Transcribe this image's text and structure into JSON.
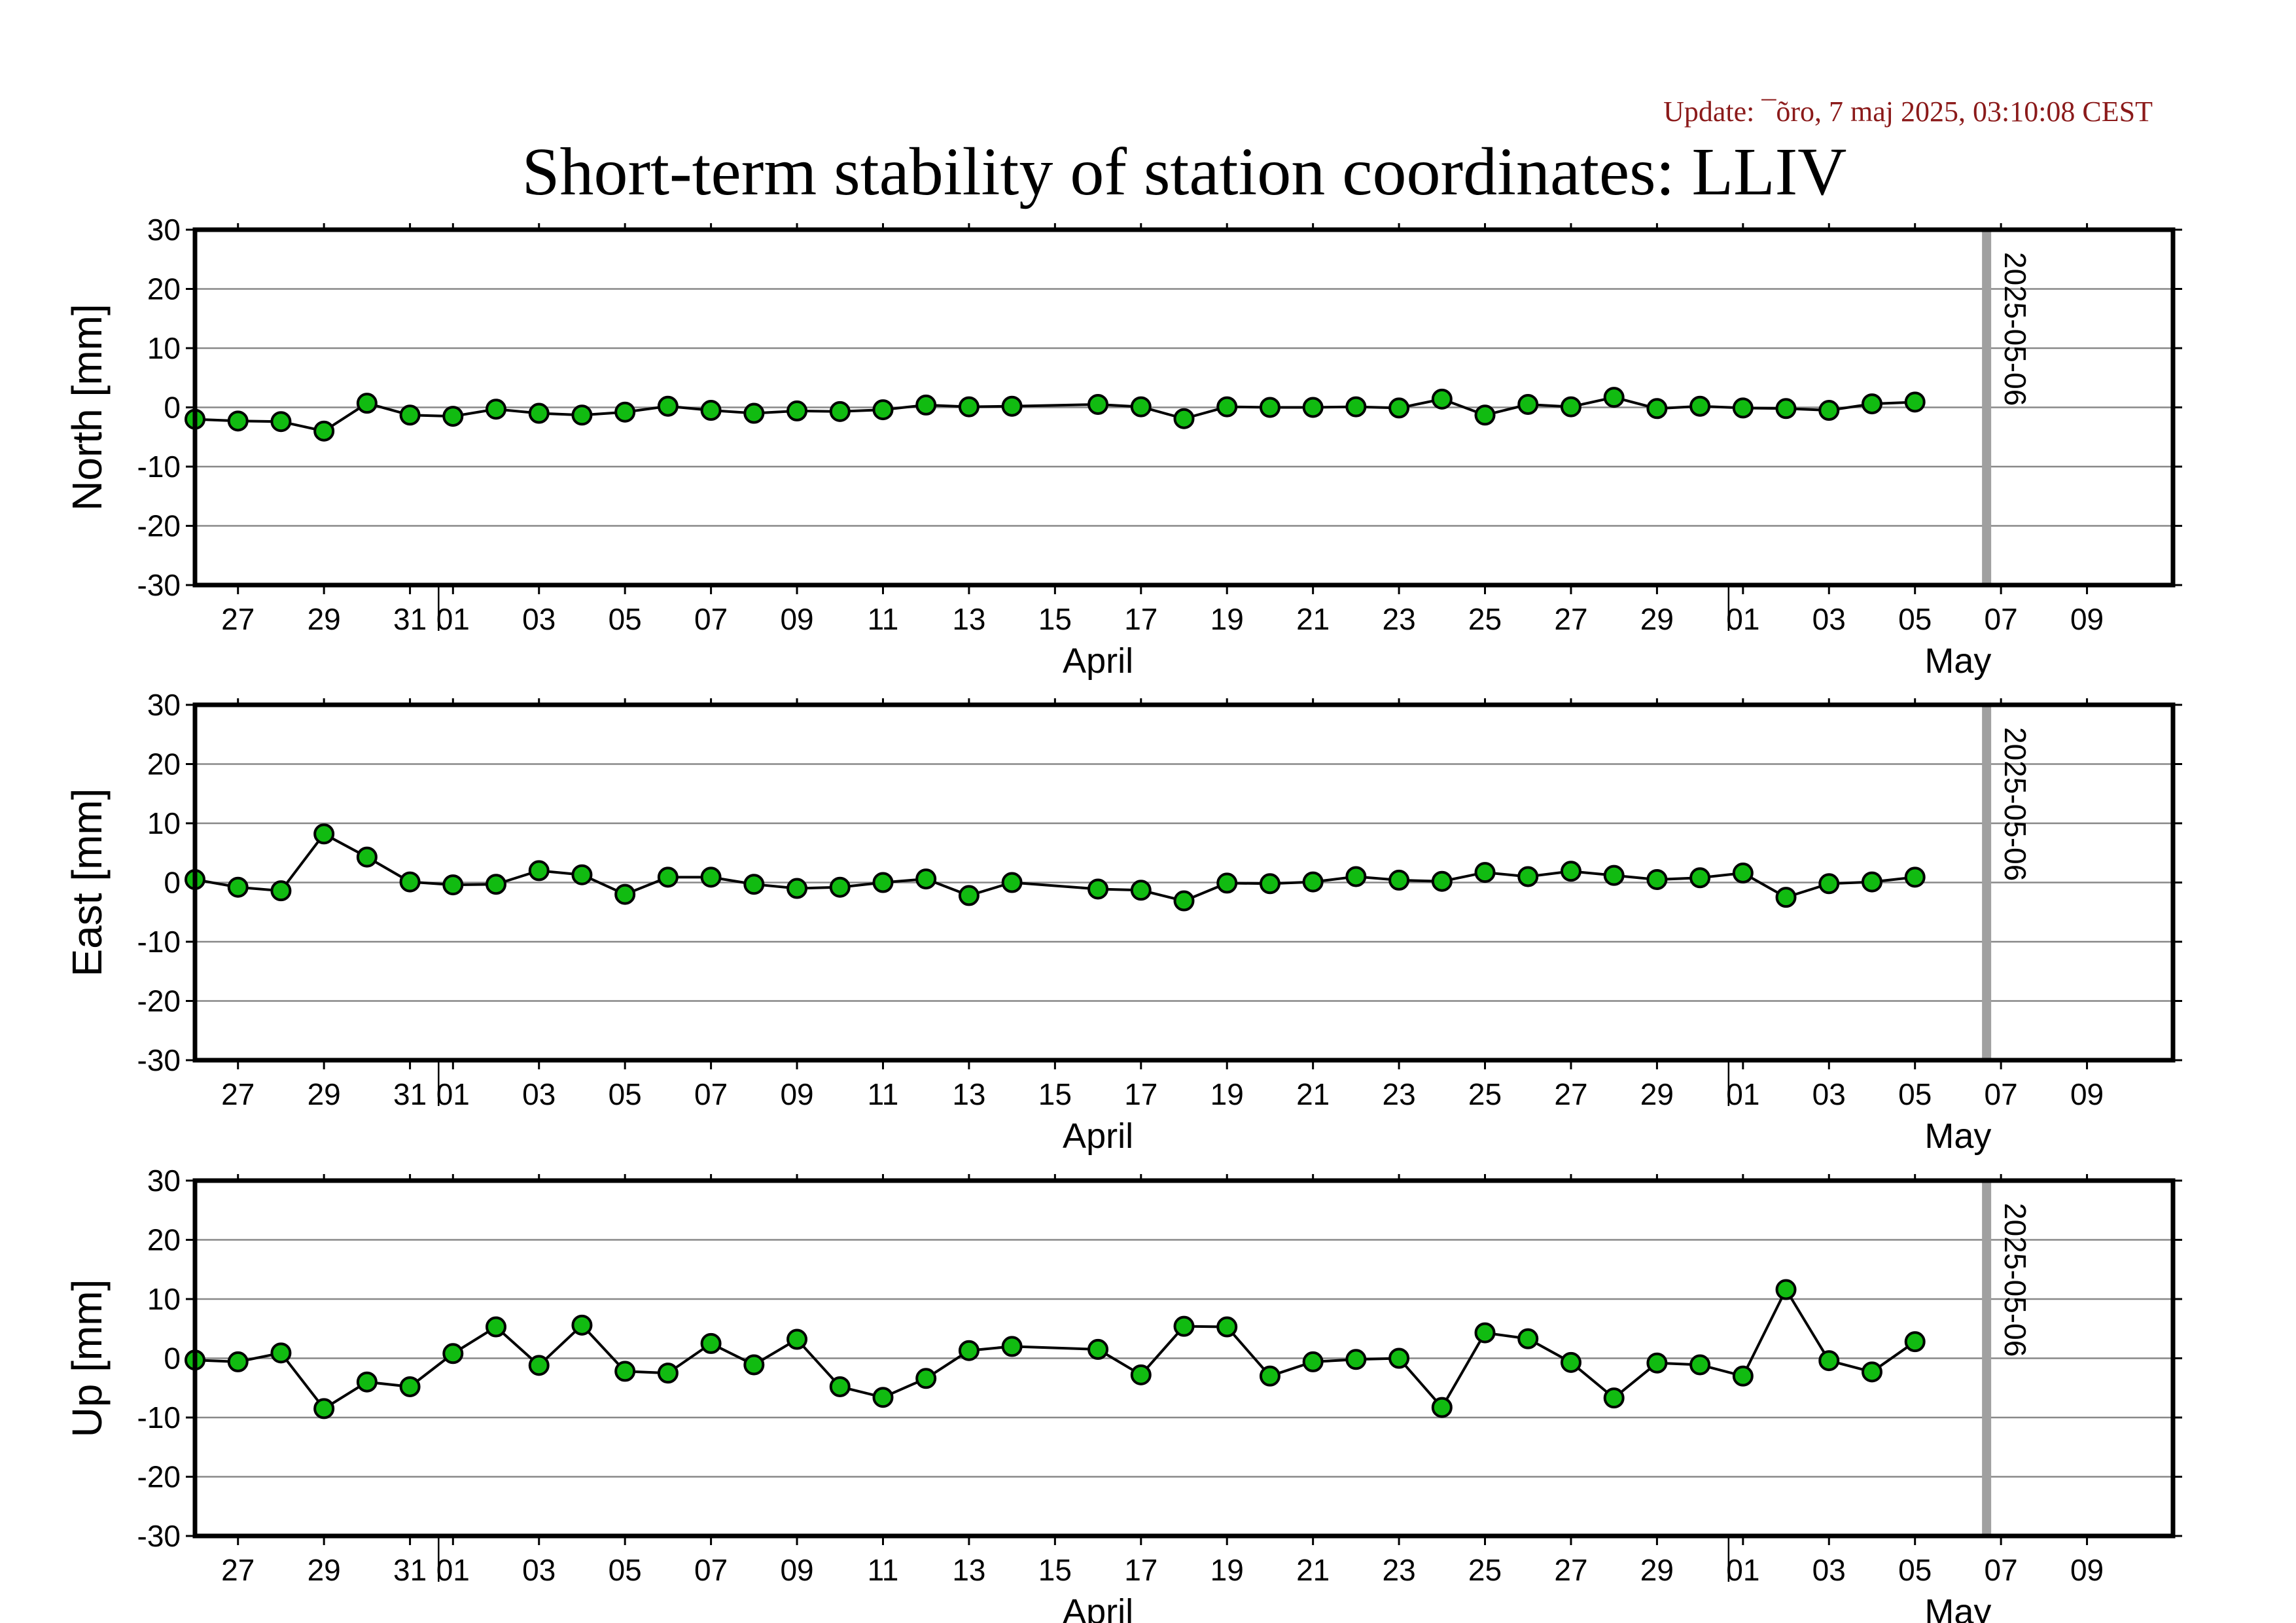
{
  "update": "Update: ¯õro, 7 maj 2025, 03:10:08 CEST",
  "title": "Short-term stability of station coordinates: LLIV",
  "style": {
    "point_color": "#11bb11",
    "line_color": "#000000",
    "marker_line_color": "#a0a0a0",
    "update_color": "#8b1a1a"
  },
  "chart_data": [
    {
      "type": "line",
      "ylabel": "North [mm]",
      "ylim": [
        -30,
        30
      ],
      "yticks": [
        -30,
        -20,
        -10,
        0,
        10,
        20,
        30
      ],
      "xlim": [
        "2025-03-25",
        "2025-05-10"
      ],
      "grid": "horizontal",
      "marker_line": {
        "date": "2025-05-06",
        "label": "2025-05-06"
      },
      "series": [
        {
          "x": [
            "2025-03-25",
            "2025-03-26",
            "2025-03-27",
            "2025-03-28",
            "2025-03-29",
            "2025-03-30",
            "2025-03-31",
            "2025-04-01",
            "2025-04-02",
            "2025-04-03",
            "2025-04-04",
            "2025-04-05",
            "2025-04-06",
            "2025-04-07",
            "2025-04-08",
            "2025-04-09",
            "2025-04-10",
            "2025-04-11",
            "2025-04-12",
            "2025-04-13",
            "2025-04-15",
            "2025-04-16",
            "2025-04-17",
            "2025-04-18",
            "2025-04-19",
            "2025-04-20",
            "2025-04-21",
            "2025-04-22",
            "2025-04-23",
            "2025-04-24",
            "2025-04-25",
            "2025-04-26",
            "2025-04-27",
            "2025-04-28",
            "2025-04-29",
            "2025-04-30",
            "2025-05-01",
            "2025-05-02",
            "2025-05-03",
            "2025-05-04"
          ],
          "y": [
            -2.0,
            -2.3,
            -2.4,
            -4.0,
            0.7,
            -1.3,
            -1.5,
            -0.3,
            -1.0,
            -1.3,
            -0.8,
            0.2,
            -0.5,
            -1.0,
            -0.6,
            -0.7,
            -0.4,
            0.4,
            0.1,
            0.2,
            0.5,
            0.1,
            -1.9,
            0.1,
            0.0,
            0.0,
            0.1,
            -0.1,
            1.4,
            -1.3,
            0.5,
            0.1,
            1.7,
            -0.2,
            0.2,
            -0.1,
            -0.2,
            -0.5,
            0.6,
            0.9
          ]
        }
      ]
    },
    {
      "type": "line",
      "ylabel": "East [mm]",
      "ylim": [
        -30,
        30
      ],
      "yticks": [
        -30,
        -20,
        -10,
        0,
        10,
        20,
        30
      ],
      "xlim": [
        "2025-03-25",
        "2025-05-10"
      ],
      "grid": "horizontal",
      "marker_line": {
        "date": "2025-05-06",
        "label": "2025-05-06"
      },
      "series": [
        {
          "x": [
            "2025-03-25",
            "2025-03-26",
            "2025-03-27",
            "2025-03-28",
            "2025-03-29",
            "2025-03-30",
            "2025-03-31",
            "2025-04-01",
            "2025-04-02",
            "2025-04-03",
            "2025-04-04",
            "2025-04-05",
            "2025-04-06",
            "2025-04-07",
            "2025-04-08",
            "2025-04-09",
            "2025-04-10",
            "2025-04-11",
            "2025-04-12",
            "2025-04-13",
            "2025-04-15",
            "2025-04-16",
            "2025-04-17",
            "2025-04-18",
            "2025-04-19",
            "2025-04-20",
            "2025-04-21",
            "2025-04-22",
            "2025-04-23",
            "2025-04-24",
            "2025-04-25",
            "2025-04-26",
            "2025-04-27",
            "2025-04-28",
            "2025-04-29",
            "2025-04-30",
            "2025-05-01",
            "2025-05-02",
            "2025-05-03",
            "2025-05-04"
          ],
          "y": [
            0.5,
            -0.8,
            -1.4,
            8.2,
            4.3,
            0.1,
            -0.4,
            -0.3,
            2.0,
            1.3,
            -2.0,
            0.9,
            0.9,
            -0.3,
            -1.0,
            -0.8,
            0.0,
            0.6,
            -2.2,
            0.0,
            -1.1,
            -1.3,
            -3.1,
            -0.1,
            -0.2,
            0.1,
            1.0,
            0.4,
            0.2,
            1.7,
            1.0,
            1.9,
            1.2,
            0.5,
            0.8,
            1.6,
            -2.5,
            -0.2,
            0.1,
            0.9
          ]
        }
      ]
    },
    {
      "type": "line",
      "ylabel": "Up [mm]",
      "ylim": [
        -30,
        30
      ],
      "yticks": [
        -30,
        -20,
        -10,
        0,
        10,
        20,
        30
      ],
      "xlim": [
        "2025-03-25",
        "2025-05-10"
      ],
      "grid": "horizontal",
      "marker_line": {
        "date": "2025-05-06",
        "label": "2025-05-06"
      },
      "series": [
        {
          "x": [
            "2025-03-25",
            "2025-03-26",
            "2025-03-27",
            "2025-03-28",
            "2025-03-29",
            "2025-03-30",
            "2025-03-31",
            "2025-04-01",
            "2025-04-02",
            "2025-04-03",
            "2025-04-04",
            "2025-04-05",
            "2025-04-06",
            "2025-04-07",
            "2025-04-08",
            "2025-04-09",
            "2025-04-10",
            "2025-04-11",
            "2025-04-12",
            "2025-04-13",
            "2025-04-15",
            "2025-04-16",
            "2025-04-17",
            "2025-04-18",
            "2025-04-19",
            "2025-04-20",
            "2025-04-21",
            "2025-04-22",
            "2025-04-23",
            "2025-04-24",
            "2025-04-25",
            "2025-04-26",
            "2025-04-27",
            "2025-04-28",
            "2025-04-29",
            "2025-04-30",
            "2025-05-01",
            "2025-05-02",
            "2025-05-03",
            "2025-05-04"
          ],
          "y": [
            -0.3,
            -0.6,
            0.9,
            -8.5,
            -4.0,
            -4.8,
            0.8,
            5.3,
            -1.2,
            5.6,
            -2.2,
            -2.5,
            2.5,
            -1.1,
            3.2,
            -4.8,
            -6.6,
            -3.4,
            1.3,
            2.0,
            1.5,
            -2.8,
            5.4,
            5.3,
            -3.0,
            -0.6,
            -0.2,
            0.0,
            -8.3,
            4.3,
            3.3,
            -0.7,
            -6.7,
            -0.8,
            -1.1,
            -3.0,
            11.6,
            -0.4,
            -2.3,
            2.8
          ]
        }
      ]
    }
  ],
  "xaxis": {
    "day_ticks": [
      {
        "date": "2025-03-26",
        "label": "27"
      },
      {
        "date": "2025-03-28",
        "label": "29"
      },
      {
        "date": "2025-03-30",
        "label": "31"
      },
      {
        "date": "2025-03-31",
        "label": "01"
      },
      {
        "date": "2025-04-02",
        "label": "03"
      },
      {
        "date": "2025-04-04",
        "label": "05"
      },
      {
        "date": "2025-04-06",
        "label": "07"
      },
      {
        "date": "2025-04-08",
        "label": "09"
      },
      {
        "date": "2025-04-10",
        "label": "11"
      },
      {
        "date": "2025-04-12",
        "label": "13"
      },
      {
        "date": "2025-04-14",
        "label": "15"
      },
      {
        "date": "2025-04-16",
        "label": "17"
      },
      {
        "date": "2025-04-18",
        "label": "19"
      },
      {
        "date": "2025-04-20",
        "label": "21"
      },
      {
        "date": "2025-04-22",
        "label": "23"
      },
      {
        "date": "2025-04-24",
        "label": "25"
      },
      {
        "date": "2025-04-26",
        "label": "27"
      },
      {
        "date": "2025-04-28",
        "label": "29"
      },
      {
        "date": "2025-04-30",
        "label": "01"
      },
      {
        "date": "2025-05-02",
        "label": "03"
      },
      {
        "date": "2025-05-04",
        "label": "05"
      },
      {
        "date": "2025-05-06",
        "label": "07"
      },
      {
        "date": "2025-05-08",
        "label": "09"
      }
    ],
    "month_boundaries": [
      "2025-03-31",
      "2025-04-30"
    ],
    "month_labels": [
      {
        "date": "2025-04-15",
        "label": "April"
      },
      {
        "date": "2025-05-05",
        "label": "May"
      }
    ]
  }
}
